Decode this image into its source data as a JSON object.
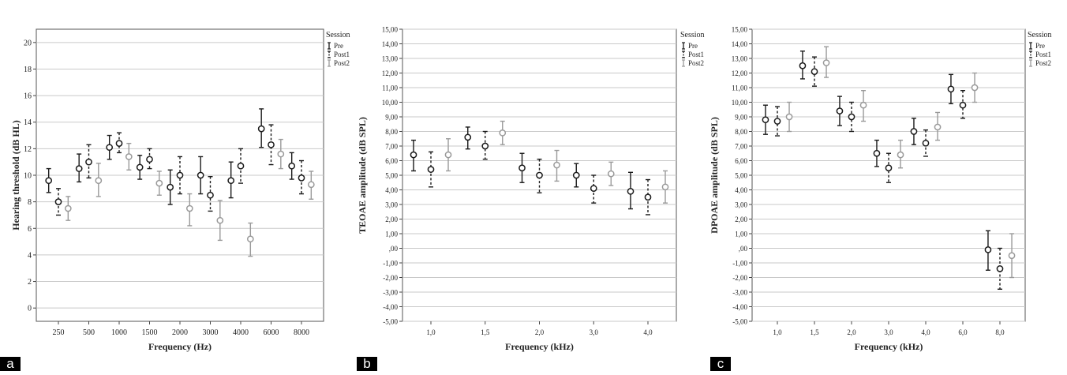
{
  "panel_letters": [
    "a",
    "b",
    "c"
  ],
  "legend": {
    "title": "Session",
    "items": [
      {
        "label": "Pre",
        "color": "#1a1a1a",
        "dash": "solid"
      },
      {
        "label": "Post1",
        "color": "#1a1a1a",
        "dash": "dashed"
      },
      {
        "label": "Post2",
        "color": "#9a9a9a",
        "dash": "solid"
      }
    ]
  },
  "chart_data": [
    {
      "type": "errorbar",
      "xlabel": "Frequency (Hz)",
      "ylabel": "Hearing threshold (dB HL)",
      "categories": [
        "250",
        "500",
        "1000",
        "1500",
        "2000",
        "3000",
        "4000",
        "6000",
        "8000"
      ],
      "ylim": [
        -1,
        21
      ],
      "yticks": [
        0,
        2,
        4,
        6,
        8,
        10,
        12,
        14,
        16,
        18,
        20
      ],
      "ytick_labels": [
        "0",
        "2",
        "4",
        "6",
        "8",
        "10",
        "12",
        "14",
        "16",
        "18",
        "20"
      ],
      "grid": true,
      "series": [
        {
          "name": "Pre",
          "mean": [
            9.6,
            10.5,
            12.1,
            10.6,
            9.1,
            10.0,
            9.6,
            13.5,
            10.7
          ],
          "lower": [
            8.7,
            9.5,
            11.2,
            9.7,
            7.8,
            8.6,
            8.3,
            12.1,
            9.7
          ],
          "upper": [
            10.5,
            11.6,
            13.0,
            11.5,
            10.4,
            11.4,
            11.0,
            15.0,
            11.7
          ]
        },
        {
          "name": "Post1",
          "mean": [
            8.0,
            11.0,
            12.4,
            11.2,
            10.0,
            8.5,
            10.7,
            12.3,
            9.8
          ],
          "lower": [
            7.0,
            9.8,
            11.7,
            10.5,
            8.6,
            7.3,
            9.4,
            10.8,
            8.6
          ],
          "upper": [
            9.0,
            12.3,
            13.2,
            12.0,
            11.4,
            9.9,
            12.0,
            13.8,
            11.1
          ]
        },
        {
          "name": "Post2",
          "mean": [
            7.5,
            9.6,
            11.4,
            9.4,
            7.5,
            6.6,
            5.2,
            11.6,
            9.3
          ],
          "lower": [
            6.6,
            8.4,
            10.4,
            8.5,
            6.2,
            5.1,
            3.9,
            10.5,
            8.2
          ],
          "upper": [
            8.4,
            10.9,
            12.4,
            10.3,
            8.6,
            8.1,
            6.4,
            12.7,
            10.3
          ]
        }
      ]
    },
    {
      "type": "errorbar",
      "xlabel": "Frequency (kHz)",
      "ylabel": "TEOAE amplitude (dB SPL)",
      "categories": [
        "1,0",
        "1,5",
        "2,0",
        "3,0",
        "4,0"
      ],
      "ylim": [
        -5,
        15
      ],
      "yticks": [
        -5,
        -4,
        -3,
        -2,
        -1,
        0,
        1,
        2,
        3,
        4,
        5,
        6,
        7,
        8,
        9,
        10,
        11,
        12,
        13,
        14,
        15
      ],
      "ytick_labels": [
        "-5,00",
        "-4,00",
        "-3,00",
        "-2,00",
        "-1,00",
        ",00",
        "1,00",
        "2,00",
        "3,00",
        "4,00",
        "5,00",
        "6,00",
        "7,00",
        "8,00",
        "9,00",
        "10,00",
        "11,00",
        "12,00",
        "13,00",
        "14,00",
        "15,00"
      ],
      "grid": true,
      "series": [
        {
          "name": "Pre",
          "mean": [
            6.4,
            7.6,
            5.5,
            5.0,
            3.9
          ],
          "lower": [
            5.3,
            6.8,
            4.5,
            4.2,
            2.7
          ],
          "upper": [
            7.4,
            8.3,
            6.5,
            5.8,
            5.2
          ]
        },
        {
          "name": "Post1",
          "mean": [
            5.4,
            7.0,
            5.0,
            4.1,
            3.5
          ],
          "lower": [
            4.2,
            6.1,
            3.8,
            3.1,
            2.3
          ],
          "upper": [
            6.6,
            8.0,
            6.1,
            5.0,
            4.7
          ]
        },
        {
          "name": "Post2",
          "mean": [
            6.4,
            7.9,
            5.7,
            5.1,
            4.2
          ],
          "lower": [
            5.3,
            7.1,
            4.6,
            4.3,
            3.1
          ],
          "upper": [
            7.5,
            8.7,
            6.7,
            5.9,
            5.3
          ]
        }
      ]
    },
    {
      "type": "errorbar",
      "xlabel": "Frequency (kHz)",
      "ylabel": "DPOAE amplitude (dB SPL)",
      "categories": [
        "1,0",
        "1,5",
        "2,0",
        "3,0",
        "4,0",
        "6,0",
        "8,0"
      ],
      "ylim": [
        -5,
        15
      ],
      "yticks": [
        -5,
        -4,
        -3,
        -2,
        -1,
        0,
        1,
        2,
        3,
        4,
        5,
        6,
        7,
        8,
        9,
        10,
        11,
        12,
        13,
        14,
        15
      ],
      "ytick_labels": [
        "-5,00",
        "-4,00",
        "-3,00",
        "-2,00",
        "-1,00",
        ",00",
        "1,00",
        "2,00",
        "3,00",
        "4,00",
        "5,00",
        "6,00",
        "7,00",
        "8,00",
        "9,00",
        "10,00",
        "11,00",
        "12,00",
        "13,00",
        "14,00",
        "15,00"
      ],
      "grid": true,
      "series": [
        {
          "name": "Pre",
          "mean": [
            8.8,
            12.5,
            9.4,
            6.5,
            8.0,
            10.9,
            -0.1
          ],
          "lower": [
            7.8,
            11.6,
            8.4,
            5.6,
            7.1,
            9.9,
            -1.5
          ],
          "upper": [
            9.8,
            13.5,
            10.4,
            7.4,
            8.9,
            11.9,
            1.2
          ]
        },
        {
          "name": "Post1",
          "mean": [
            8.7,
            12.1,
            9.0,
            5.5,
            7.2,
            9.8,
            -1.4
          ],
          "lower": [
            7.7,
            11.1,
            8.0,
            4.5,
            6.3,
            8.9,
            -2.8
          ],
          "upper": [
            9.7,
            13.1,
            10.0,
            6.5,
            8.1,
            10.8,
            0.0
          ]
        },
        {
          "name": "Post2",
          "mean": [
            9.0,
            12.7,
            9.8,
            6.4,
            8.3,
            11.0,
            -0.5
          ],
          "lower": [
            8.0,
            11.7,
            8.7,
            5.5,
            7.4,
            10.0,
            -2.0
          ],
          "upper": [
            10.0,
            13.8,
            10.8,
            7.4,
            9.3,
            12.0,
            1.0
          ]
        }
      ]
    }
  ]
}
